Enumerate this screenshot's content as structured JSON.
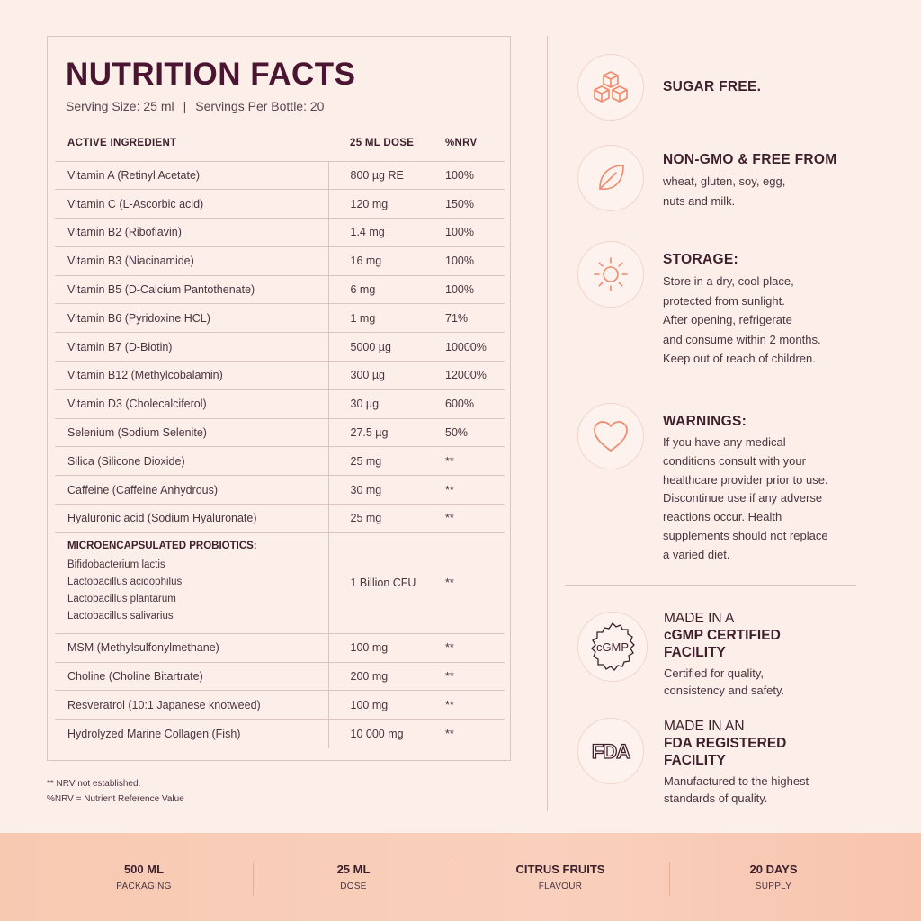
{
  "nutrition": {
    "title": "NUTRITION FACTS",
    "serving_size": "Serving Size: 25 ml",
    "servings_per_bottle": "Servings Per Bottle: 20",
    "separator": "|",
    "headers": [
      "ACTIVE INGREDIENT",
      "25 ML DOSE",
      "%NRV"
    ],
    "rows": [
      [
        "Vitamin A (Retinyl Acetate)",
        "800 µg RE",
        "100%"
      ],
      [
        "Vitamin C (L-Ascorbic acid)",
        "120 mg",
        "150%"
      ],
      [
        "Vitamin B2 (Riboflavin)",
        "1.4 mg",
        "100%"
      ],
      [
        "Vitamin B3 (Niacinamide)",
        "16 mg",
        "100%"
      ],
      [
        "Vitamin B5 (D-Calcium Pantothenate)",
        "6 mg",
        "100%"
      ],
      [
        "Vitamin B6 (Pyridoxine HCL)",
        "1 mg",
        "71%"
      ],
      [
        "Vitamin B7 (D-Biotin)",
        "5000 µg",
        "10000%"
      ],
      [
        "Vitamin B12 (Methylcobalamin)",
        "300 µg",
        "12000%"
      ],
      [
        "Vitamin D3 (Cholecalciferol)",
        "30 µg",
        "600%"
      ],
      [
        "Selenium (Sodium Selenite)",
        "27.5 µg",
        "50%"
      ],
      [
        "Silica (Silicone Dioxide)",
        "25 mg",
        "**"
      ],
      [
        "Caffeine (Caffeine Anhydrous)",
        "30 mg",
        "**"
      ],
      [
        "Hyaluronic acid (Sodium Hyaluronate)",
        "25 mg",
        "**"
      ]
    ],
    "probiotics": {
      "title": "MICROENCAPSULATED PROBIOTICS:",
      "items": [
        "Bifidobacterium lactis",
        "Lactobacillus acidophilus",
        "Lactobacillus plantarum",
        "Lactobacillus salivarius"
      ],
      "dose": "1 Billion CFU",
      "nrv": "**"
    },
    "rows_after": [
      [
        "MSM (Methylsulfonylmethane)",
        "100 mg",
        "**"
      ],
      [
        "Choline (Choline Bitartrate)",
        "200 mg",
        "**"
      ],
      [
        "Resveratrol (10:1 Japanese knotweed)",
        "100 mg",
        "**"
      ],
      [
        "Hydrolyzed Marine Collagen (Fish)",
        "10 000 mg",
        "**"
      ]
    ],
    "footnotes": [
      "** NRV not established.",
      "%NRV = Nutrient Reference Value"
    ]
  },
  "features": [
    {
      "icon": "sugar-cubes-icon",
      "title": "SUGAR FREE.",
      "body": []
    },
    {
      "icon": "leaf-icon",
      "title": "NON-GMO & FREE FROM",
      "body": [
        "wheat, gluten, soy, egg,",
        "nuts and milk."
      ]
    },
    {
      "icon": "sun-icon",
      "title": "STORAGE:",
      "body": [
        "Store in a dry, cool place,",
        "protected from sunlight.",
        "After opening, refrigerate",
        "and consume within 2 months.",
        "Keep out of reach of children."
      ]
    },
    {
      "icon": "heart-icon",
      "title": "WARNINGS:",
      "body": [
        "If you have any medical",
        "conditions consult with your",
        "healthcare provider prior to use.",
        "Discontinue use if any adverse",
        "reactions occur. Health",
        "supplements should not replace",
        "a varied diet."
      ]
    }
  ],
  "certifications": [
    {
      "icon": "cgmp-seal-icon",
      "badge_text": "cGMP",
      "pre": "MADE IN A",
      "strong": [
        "cGMP CERTIFIED",
        "FACILITY"
      ],
      "body": [
        "Certified for quality,",
        "consistency and safety."
      ]
    },
    {
      "icon": "fda-logo-icon",
      "badge_text": "FDA",
      "pre": "MADE IN AN",
      "strong": [
        "FDA REGISTERED",
        "FACILITY"
      ],
      "body": [
        "Manufactured to the highest",
        "standards of quality."
      ]
    }
  ],
  "bottom_bar": [
    {
      "value": "500 ML",
      "label": "PACKAGING"
    },
    {
      "value": "25 ML",
      "label": "DOSE"
    },
    {
      "value": "CITRUS FRUITS",
      "label": "FLAVOUR"
    },
    {
      "value": "20 DAYS",
      "label": "SUPPLY"
    }
  ],
  "colors": {
    "accent": "#ef8a6a",
    "text": "#3d1f2b",
    "background": "#fcefea",
    "bar": "#f8c9b1"
  }
}
